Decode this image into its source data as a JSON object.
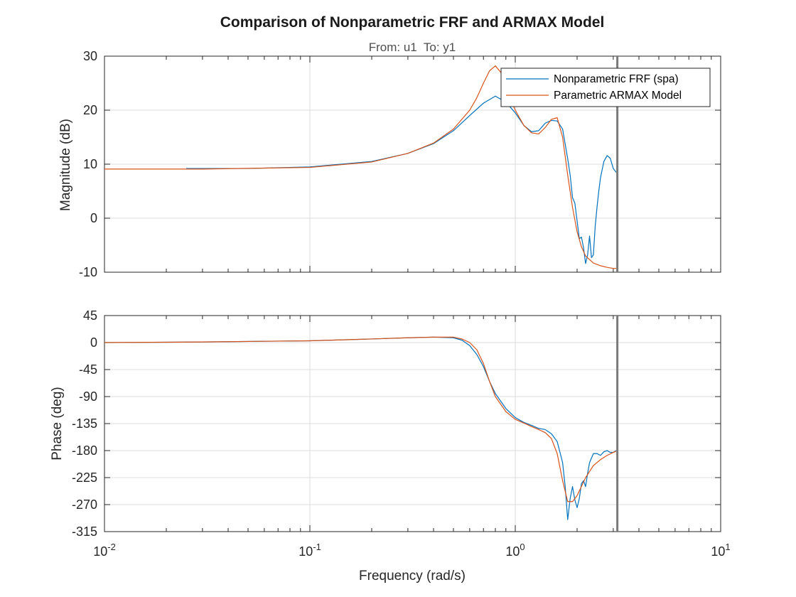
{
  "chart_data": {
    "type": "line",
    "title": "Comparison of Nonparametric FRF and ARMAX Model",
    "subtitle": "From: u1  To: y1",
    "xlabel": "Frequency (rad/s)",
    "xscale": "log",
    "xlim": [
      0.01,
      10
    ],
    "x_ticks": [
      {
        "value": 0.01,
        "base": "10",
        "exp": "-2"
      },
      {
        "value": 0.1,
        "base": "10",
        "exp": "-1"
      },
      {
        "value": 1,
        "base": "10",
        "exp": "0"
      },
      {
        "value": 10,
        "base": "10",
        "exp": "1"
      }
    ],
    "nyquist_frequency": 3.14,
    "grid": true,
    "legend": {
      "location": "top-right",
      "entries": [
        "Nonparametric FRF (spa)",
        "Parametric ARMAX Model"
      ]
    },
    "series_colors": [
      "#0072BD",
      "#D95319"
    ],
    "panels": [
      {
        "ylabel": "Magnitude (dB)",
        "ylim": [
          -10,
          30
        ],
        "yticks": [
          -10,
          0,
          10,
          20,
          30
        ],
        "series": [
          {
            "name": "Nonparametric FRF (spa)",
            "x": [
              0.025,
              0.05,
              0.1,
              0.2,
              0.3,
              0.4,
              0.5,
              0.6,
              0.7,
              0.8,
              0.9,
              1.0,
              1.1,
              1.2,
              1.3,
              1.4,
              1.5,
              1.6,
              1.7,
              1.8,
              1.85,
              1.9,
              1.95,
              2.0,
              2.05,
              2.1,
              2.15,
              2.2,
              2.25,
              2.3,
              2.35,
              2.4,
              2.45,
              2.5,
              2.55,
              2.6,
              2.7,
              2.8,
              2.9,
              3.0,
              3.1
            ],
            "y": [
              9.2,
              9.2,
              9.5,
              10.5,
              12.0,
              13.8,
              16.2,
              19.0,
              21.3,
              22.6,
              21.5,
              19.5,
              17.2,
              16.0,
              16.2,
              17.6,
              18.1,
              18.0,
              16.5,
              11.0,
              8.0,
              3.8,
              2.8,
              -0.5,
              -3.8,
              -3.5,
              -5.5,
              -8.4,
              -6.8,
              -3.3,
              -7.3,
              -6.8,
              -1.5,
              2.0,
              5.0,
              7.5,
              10.5,
              11.6,
              11.1,
              9.2,
              8.5
            ]
          },
          {
            "name": "Parametric ARMAX Model",
            "x": [
              0.01,
              0.03,
              0.1,
              0.2,
              0.3,
              0.4,
              0.5,
              0.6,
              0.65,
              0.7,
              0.75,
              0.8,
              0.85,
              0.9,
              0.95,
              1.0,
              1.1,
              1.2,
              1.3,
              1.4,
              1.5,
              1.6,
              1.7,
              1.8,
              1.9,
              2.0,
              2.1,
              2.2,
              2.4,
              2.6,
              2.8,
              3.0,
              3.1
            ],
            "y": [
              9.1,
              9.1,
              9.4,
              10.4,
              12.0,
              13.9,
              16.5,
              20.0,
              22.3,
              25.0,
              27.3,
              28.2,
              27.0,
              24.5,
              22.0,
              20.0,
              17.2,
              15.8,
              15.6,
              16.8,
              18.3,
              18.6,
              15.0,
              8.0,
              2.0,
              -2.5,
              -5.3,
              -7.0,
              -8.3,
              -8.8,
              -9.1,
              -9.3,
              -9.3
            ]
          }
        ]
      },
      {
        "ylabel": "Phase (deg)",
        "ylim": [
          -315,
          45
        ],
        "yticks": [
          -315,
          -270,
          -225,
          -180,
          -135,
          -90,
          -45,
          0,
          45
        ],
        "series": [
          {
            "name": "Nonparametric FRF (spa)",
            "x": [
              0.01,
              0.03,
              0.1,
              0.2,
              0.3,
              0.4,
              0.5,
              0.55,
              0.6,
              0.65,
              0.7,
              0.75,
              0.8,
              0.9,
              1.0,
              1.1,
              1.2,
              1.3,
              1.4,
              1.5,
              1.6,
              1.7,
              1.75,
              1.8,
              1.85,
              1.9,
              1.95,
              2.0,
              2.05,
              2.1,
              2.15,
              2.2,
              2.25,
              2.3,
              2.4,
              2.5,
              2.6,
              2.7,
              2.8,
              2.9,
              3.0,
              3.1
            ],
            "y": [
              0,
              1,
              3,
              6,
              8,
              9,
              8,
              4,
              -5,
              -20,
              -40,
              -65,
              -85,
              -110,
              -125,
              -133,
              -138,
              -143,
              -145,
              -152,
              -165,
              -200,
              -240,
              -295,
              -260,
              -240,
              -262,
              -275,
              -260,
              -235,
              -230,
              -240,
              -218,
              -200,
              -185,
              -185,
              -188,
              -182,
              -180,
              -183,
              -183,
              -180
            ]
          },
          {
            "name": "Parametric ARMAX Model",
            "x": [
              0.01,
              0.03,
              0.1,
              0.2,
              0.3,
              0.4,
              0.5,
              0.55,
              0.6,
              0.65,
              0.7,
              0.75,
              0.8,
              0.9,
              1.0,
              1.1,
              1.2,
              1.3,
              1.4,
              1.5,
              1.6,
              1.7,
              1.8,
              1.9,
              2.0,
              2.2,
              2.4,
              2.6,
              2.8,
              3.0,
              3.1
            ],
            "y": [
              0,
              1,
              3,
              6,
              8,
              9,
              9,
              6,
              0,
              -12,
              -35,
              -65,
              -90,
              -115,
              -128,
              -134,
              -140,
              -145,
              -150,
              -160,
              -185,
              -230,
              -265,
              -265,
              -255,
              -225,
              -205,
              -195,
              -188,
              -183,
              -181
            ]
          }
        ]
      }
    ]
  }
}
